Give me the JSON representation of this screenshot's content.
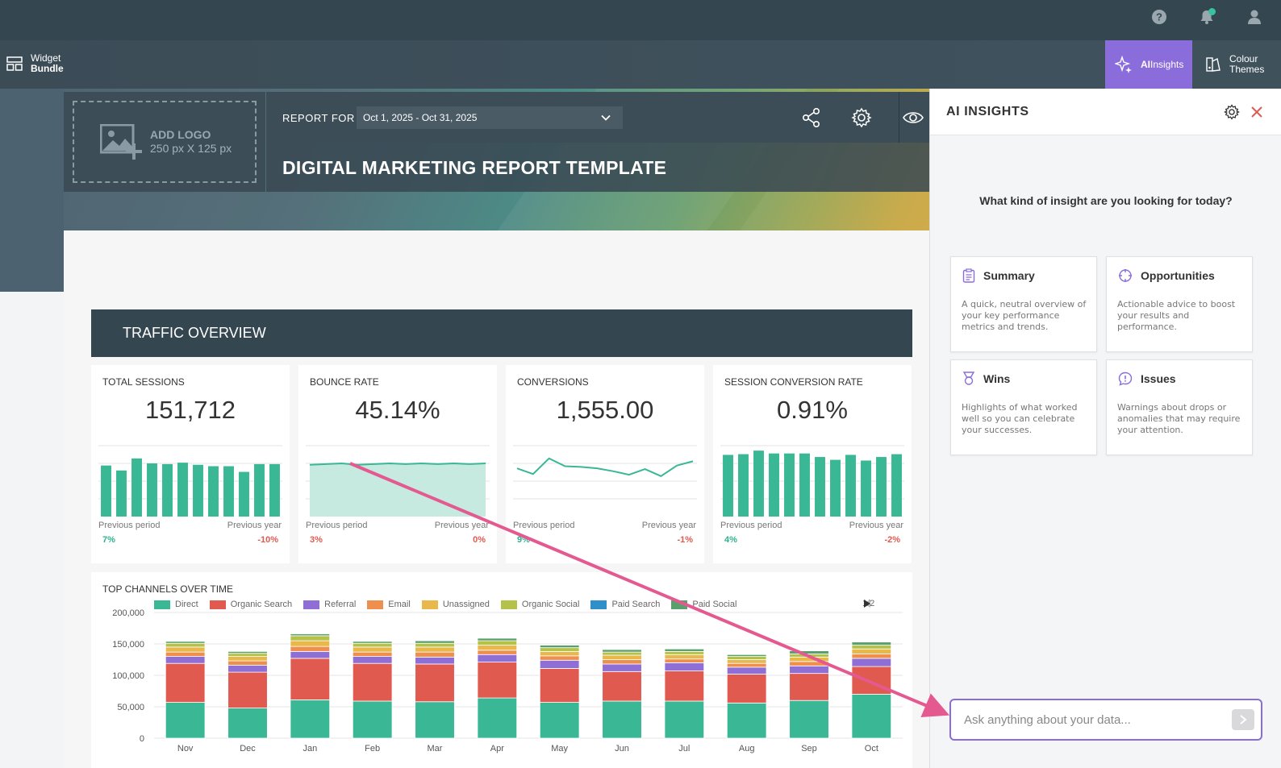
{
  "topbar": {
    "icons": [
      "help-icon",
      "bell-icon",
      "user-icon"
    ],
    "colors": {
      "bg": "#344650",
      "notif": "#38c3a0"
    }
  },
  "toolbar": {
    "widget": {
      "line1": "Widget",
      "line2": "Bundle"
    },
    "ai": {
      "line1": "AI",
      "line2": "Insights"
    },
    "themes": {
      "line1": "Colour",
      "line2": "Themes"
    },
    "accent": "#8b6cdb"
  },
  "report": {
    "logo": {
      "label": "ADD LOGO",
      "size": "250 px X 125 px"
    },
    "report_for": "REPORT FOR",
    "date_range": "Oct 1, 2025 - Oct 31, 2025",
    "title": "DIGITAL MARKETING REPORT TEMPLATE"
  },
  "section": {
    "title": "TRAFFIC OVERVIEW"
  },
  "kpis": [
    {
      "title": "TOTAL SESSIONS",
      "value": "151,712",
      "prev_period_label": "Previous period",
      "prev_period": "7%",
      "prev_year_label": "Previous year",
      "prev_year": "-10%",
      "spark_type": "bar",
      "spark": [
        0.72,
        0.65,
        0.82,
        0.75,
        0.74,
        0.76,
        0.73,
        0.71,
        0.71,
        0.63,
        0.74,
        0.74
      ]
    },
    {
      "title": "BOUNCE RATE",
      "value": "45.14%",
      "prev_period_label": "Previous period",
      "prev_period": "3%",
      "prev_year_label": "Previous year",
      "prev_year": "0%",
      "spark_type": "area",
      "spark": [
        0.73,
        0.74,
        0.75,
        0.73,
        0.74,
        0.75,
        0.74,
        0.75,
        0.74,
        0.75,
        0.74,
        0.75
      ]
    },
    {
      "title": "CONVERSIONS",
      "value": "1,555.00",
      "prev_period_label": "Previous period",
      "prev_period": "9%",
      "prev_year_label": "Previous year",
      "prev_year": "-1%",
      "spark_type": "line",
      "spark": [
        0.68,
        0.6,
        0.82,
        0.71,
        0.7,
        0.68,
        0.64,
        0.59,
        0.67,
        0.57,
        0.72,
        0.78
      ]
    },
    {
      "title": "SESSION CONVERSION RATE",
      "value": "0.91%",
      "prev_period_label": "Previous period",
      "prev_period": "4%",
      "prev_year_label": "Previous year",
      "prev_year": "-2%",
      "spark_type": "bar",
      "spark": [
        0.87,
        0.88,
        0.93,
        0.89,
        0.89,
        0.89,
        0.84,
        0.8,
        0.87,
        0.79,
        0.84,
        0.88
      ]
    }
  ],
  "chart_data": {
    "type": "bar",
    "stacked": true,
    "title": "TOP CHANNELS OVER TIME",
    "categories": [
      "Nov",
      "Dec",
      "Jan",
      "Feb",
      "Mar",
      "Apr",
      "May",
      "Jun",
      "Jul",
      "Aug",
      "Sep",
      "Oct"
    ],
    "ylim": [
      0,
      200000
    ],
    "yticks": [
      "200,000",
      "150,000",
      "100,000",
      "50,000",
      "0"
    ],
    "pager": "1/2",
    "series": [
      {
        "name": "Direct",
        "color": "#3ab795",
        "values": [
          57000,
          48000,
          61000,
          59000,
          58000,
          64000,
          57000,
          59000,
          59000,
          56000,
          60000,
          70000
        ]
      },
      {
        "name": "Organic Search",
        "color": "#e05a50",
        "values": [
          62000,
          57000,
          66000,
          60000,
          60000,
          57000,
          54000,
          47000,
          48000,
          46000,
          43000,
          44000
        ]
      },
      {
        "name": "Referral",
        "color": "#8f6ed5",
        "values": [
          11000,
          11000,
          11000,
          11000,
          11000,
          12000,
          13000,
          12000,
          13000,
          11000,
          12000,
          13000
        ]
      },
      {
        "name": "Email",
        "color": "#ef8f4e",
        "values": [
          7000,
          7000,
          8000,
          7000,
          8000,
          7000,
          7000,
          7000,
          6000,
          6000,
          7000,
          7000
        ]
      },
      {
        "name": "Unassigned",
        "color": "#e8b94a",
        "values": [
          8000,
          7000,
          9000,
          8000,
          8000,
          8000,
          7000,
          7000,
          7000,
          6000,
          7000,
          8000
        ]
      },
      {
        "name": "Organic Social",
        "color": "#b5c24a",
        "values": [
          6000,
          5000,
          8000,
          6000,
          6000,
          7000,
          6000,
          5000,
          5000,
          5000,
          5000,
          6000
        ]
      },
      {
        "name": "Paid Search",
        "color": "#2f8fc9",
        "values": [
          0,
          0,
          0,
          0,
          0,
          0,
          0,
          0,
          0,
          0,
          0,
          0
        ]
      },
      {
        "name": "Paid Social",
        "color": "#5aa06c",
        "values": [
          3000,
          3000,
          3000,
          3000,
          4000,
          4000,
          4000,
          4000,
          4000,
          3000,
          5000,
          5000
        ]
      }
    ]
  },
  "panel": {
    "title": "AI INSIGHTS",
    "question": "What kind of insight are you looking for today?",
    "cards": [
      {
        "title": "Summary",
        "desc": "A quick, neutral overview of your key performance metrics and trends."
      },
      {
        "title": "Opportunities",
        "desc": "Actionable advice to boost your results and performance."
      },
      {
        "title": "Wins",
        "desc": "Highlights of what worked well so you can celebrate your successes."
      },
      {
        "title": "Issues",
        "desc": "Warnings about drops or anomalies that may require your attention."
      }
    ],
    "ask_placeholder": "Ask anything about your data..."
  }
}
